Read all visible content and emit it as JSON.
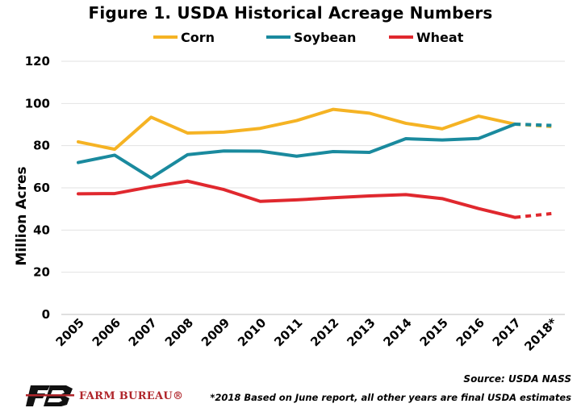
{
  "chart_data": {
    "type": "line",
    "title": "Figure 1. USDA Historical Acreage Numbers",
    "ylabel": "Million Acres",
    "xlabel": "",
    "ylim": [
      0,
      120
    ],
    "yticks": [
      0,
      20,
      40,
      60,
      80,
      100,
      120
    ],
    "categories": [
      "2005",
      "2006",
      "2007",
      "2008",
      "2009",
      "2010",
      "2011",
      "2012",
      "2013",
      "2014",
      "2015",
      "2016",
      "2017",
      "2018*"
    ],
    "grid": true,
    "legend_position": "top",
    "projected_from_index": 12,
    "series": [
      {
        "name": "Corn",
        "color": "#F5B324",
        "values": [
          81.8,
          78.3,
          93.5,
          86.0,
          86.4,
          88.2,
          91.9,
          97.2,
          95.4,
          90.6,
          88.0,
          94.0,
          90.2,
          89.1
        ]
      },
      {
        "name": "Soybean",
        "color": "#1A8A9E",
        "values": [
          72.0,
          75.5,
          64.7,
          75.7,
          77.5,
          77.4,
          75.0,
          77.2,
          76.8,
          83.3,
          82.7,
          83.4,
          90.2,
          89.6
        ]
      },
      {
        "name": "Wheat",
        "color": "#E0282E",
        "values": [
          57.2,
          57.3,
          60.5,
          63.2,
          59.2,
          53.6,
          54.3,
          55.3,
          56.2,
          56.8,
          54.9,
          50.2,
          46.0,
          47.8
        ]
      }
    ]
  },
  "source": "Source: USDA NASS",
  "footnote": "*2018 Based on June report, all other years are final USDA estimates",
  "logo": {
    "text": "FARM BUREAU®",
    "color": "#b0262b"
  }
}
